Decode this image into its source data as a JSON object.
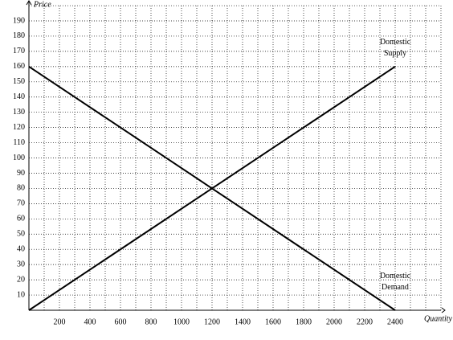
{
  "chart_data": {
    "type": "line",
    "x_label": "Quantity",
    "y_label": "Price",
    "xlim": [
      0,
      2700
    ],
    "ylim": [
      0,
      200
    ],
    "xticks": [
      200,
      400,
      600,
      800,
      1000,
      1200,
      1400,
      1600,
      1800,
      2000,
      2200,
      2400
    ],
    "yticks": [
      10,
      20,
      30,
      40,
      50,
      60,
      70,
      80,
      90,
      100,
      110,
      120,
      130,
      140,
      150,
      160,
      170,
      180,
      190
    ],
    "grid": true,
    "series": [
      {
        "name": "Domestic Supply",
        "color": "#000000",
        "x": [
          0,
          2400
        ],
        "values": [
          0,
          160
        ]
      },
      {
        "name": "Domestic Demand",
        "color": "#000000",
        "x": [
          0,
          2400
        ],
        "values": [
          160,
          0
        ]
      }
    ]
  }
}
